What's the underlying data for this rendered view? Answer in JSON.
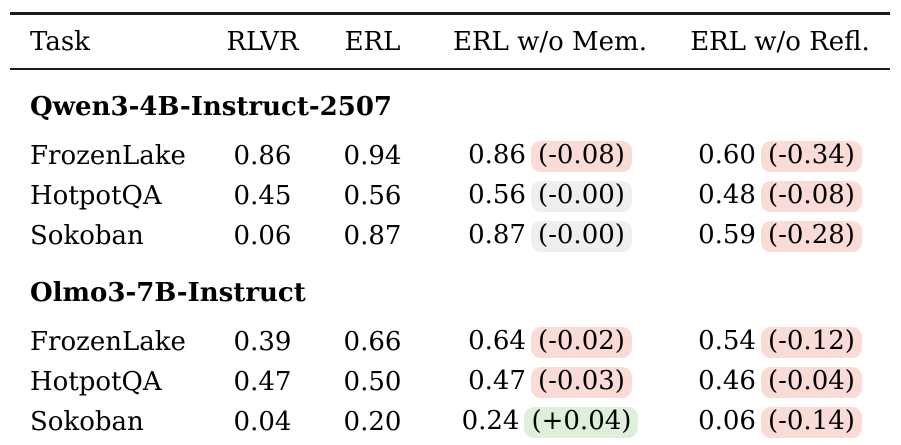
{
  "table": {
    "columns": [
      "Task",
      "RLVR",
      "ERL",
      "ERL w/o Mem.",
      "ERL w/o Refl."
    ],
    "sections": [
      {
        "title": "Qwen3-4B-Instruct-2507",
        "rows": [
          {
            "task": "FrozenLake",
            "rlvr": "0.86",
            "erl": "0.94",
            "mem": {
              "value": "0.86",
              "delta": "(-0.08)",
              "tone": "red"
            },
            "refl": {
              "value": "0.60",
              "delta": "(-0.34)",
              "tone": "red"
            }
          },
          {
            "task": "HotpotQA",
            "rlvr": "0.45",
            "erl": "0.56",
            "mem": {
              "value": "0.56",
              "delta": "(-0.00)",
              "tone": "gray"
            },
            "refl": {
              "value": "0.48",
              "delta": "(-0.08)",
              "tone": "red"
            }
          },
          {
            "task": "Sokoban",
            "rlvr": "0.06",
            "erl": "0.87",
            "mem": {
              "value": "0.87",
              "delta": "(-0.00)",
              "tone": "gray"
            },
            "refl": {
              "value": "0.59",
              "delta": "(-0.28)",
              "tone": "red"
            }
          }
        ]
      },
      {
        "title": "Olmo3-7B-Instruct",
        "rows": [
          {
            "task": "FrozenLake",
            "rlvr": "0.39",
            "erl": "0.66",
            "mem": {
              "value": "0.64",
              "delta": "(-0.02)",
              "tone": "red"
            },
            "refl": {
              "value": "0.54",
              "delta": "(-0.12)",
              "tone": "red"
            }
          },
          {
            "task": "HotpotQA",
            "rlvr": "0.47",
            "erl": "0.50",
            "mem": {
              "value": "0.47",
              "delta": "(-0.03)",
              "tone": "red"
            },
            "refl": {
              "value": "0.46",
              "delta": "(-0.04)",
              "tone": "red"
            }
          },
          {
            "task": "Sokoban",
            "rlvr": "0.04",
            "erl": "0.20",
            "mem": {
              "value": "0.24",
              "delta": "(+0.04)",
              "tone": "green"
            },
            "refl": {
              "value": "0.06",
              "delta": "(-0.14)",
              "tone": "red"
            }
          }
        ]
      }
    ],
    "colors": {
      "negative_highlight": "#fadbd5",
      "positive_highlight": "#def0d9",
      "neutral_highlight": "#f0efed",
      "rule": "#1c1c1c",
      "text": "#000000"
    }
  }
}
